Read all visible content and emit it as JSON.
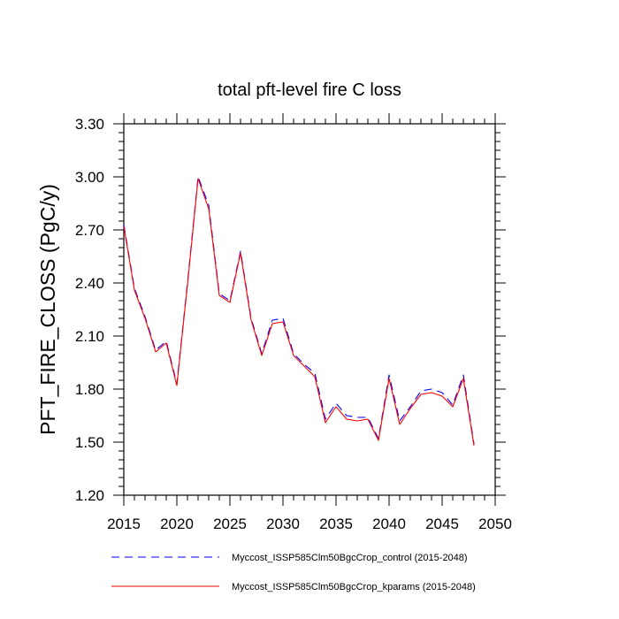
{
  "chart_data": {
    "type": "line",
    "title": "total pft-level fire C loss",
    "xlabel": "",
    "ylabel": "PFT_FIRE_CLOSS  (PgC/y)",
    "xlim": [
      2015,
      2050
    ],
    "ylim": [
      1.2,
      3.3
    ],
    "x_ticks": [
      2015,
      2020,
      2025,
      2030,
      2035,
      2040,
      2045,
      2050
    ],
    "y_ticks": [
      1.2,
      1.5,
      1.8,
      2.1,
      2.4,
      2.7,
      3.0,
      3.3
    ],
    "x_tick_labels": [
      "2015",
      "2020",
      "2025",
      "2030",
      "2035",
      "2040",
      "2045",
      "2050"
    ],
    "y_tick_labels": [
      "1.20",
      "1.50",
      "1.80",
      "2.10",
      "2.40",
      "2.70",
      "3.00",
      "3.30"
    ],
    "x": [
      2015,
      2016,
      2017,
      2018,
      2019,
      2020,
      2021,
      2022,
      2023,
      2024,
      2025,
      2026,
      2027,
      2028,
      2029,
      2030,
      2031,
      2032,
      2033,
      2034,
      2035,
      2036,
      2037,
      2038,
      2039,
      2040,
      2041,
      2042,
      2043,
      2044,
      2045,
      2046,
      2047,
      2048
    ],
    "series": [
      {
        "name": "Myccost_ISSP585Clm50BgcCrop_control (2015-2048)",
        "color": "#0000ff",
        "style": "dashed",
        "values": [
          2.73,
          2.37,
          2.21,
          2.02,
          2.07,
          1.83,
          2.4,
          3.0,
          2.84,
          2.34,
          2.3,
          2.58,
          2.2,
          2.0,
          2.19,
          2.2,
          2.0,
          1.94,
          1.89,
          1.63,
          1.72,
          1.65,
          1.64,
          1.64,
          1.52,
          1.88,
          1.62,
          1.7,
          1.79,
          1.8,
          1.78,
          1.71,
          1.88,
          1.49
        ]
      },
      {
        "name": "Myccost_ISSP585Clm50BgcCrop_kparams (2015-2048)",
        "color": "#ff0000",
        "style": "solid",
        "values": [
          2.72,
          2.36,
          2.2,
          2.01,
          2.06,
          1.82,
          2.39,
          2.99,
          2.82,
          2.33,
          2.29,
          2.57,
          2.19,
          1.99,
          2.17,
          2.18,
          1.99,
          1.93,
          1.87,
          1.61,
          1.7,
          1.63,
          1.62,
          1.63,
          1.51,
          1.86,
          1.6,
          1.69,
          1.77,
          1.78,
          1.76,
          1.7,
          1.86,
          1.48
        ]
      }
    ],
    "legend_position": "bottom"
  }
}
